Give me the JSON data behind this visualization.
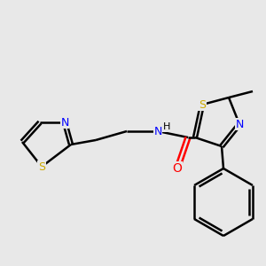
{
  "bg_color": "#e8e8e8",
  "bond_color": "#000000",
  "N_color": "#0000ff",
  "S_color": "#ccaa00",
  "O_color": "#ff0000",
  "lw": 1.8,
  "figsize": [
    3.0,
    3.0
  ],
  "dpi": 100,
  "xlim": [
    0,
    300
  ],
  "ylim": [
    0,
    300
  ]
}
